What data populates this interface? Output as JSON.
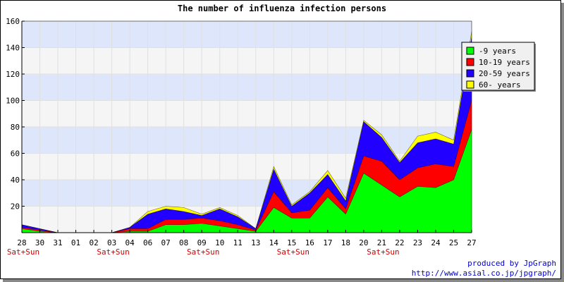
{
  "chart_data": {
    "type": "area",
    "stacked": true,
    "title": "The number of influenza infection persons",
    "xlabel": "",
    "ylabel": "",
    "categories": [
      "28",
      "30",
      "31",
      "01",
      "02",
      "03",
      "04",
      "06",
      "07",
      "08",
      "09",
      "10",
      "11",
      "13",
      "14",
      "15",
      "16",
      "17",
      "18",
      "20",
      "21",
      "22",
      "23",
      "24",
      "25",
      "27"
    ],
    "weekend_markers": [
      {
        "index": 0,
        "label": "Sat+Sun"
      },
      {
        "index": 5,
        "label": "Sat+Sun"
      },
      {
        "index": 10,
        "label": "Sat+Sun"
      },
      {
        "index": 15,
        "label": "Sat+Sun"
      },
      {
        "index": 20,
        "label": "Sat+Sun"
      }
    ],
    "ylim": [
      0,
      160
    ],
    "yticks": [
      20,
      40,
      60,
      80,
      100,
      120,
      140,
      160
    ],
    "grid": true,
    "legend_position": "top-right",
    "series": [
      {
        "name": "-9 years",
        "color": "#00ff00",
        "values": [
          3,
          1,
          0,
          0,
          0,
          0,
          1,
          1,
          6,
          6,
          7,
          5,
          3,
          1,
          19,
          11,
          11,
          27,
          14,
          45,
          36,
          27,
          35,
          34,
          40,
          78
        ]
      },
      {
        "name": "10-19 years",
        "color": "#ff0000",
        "values": [
          1,
          1,
          0,
          0,
          0,
          0,
          2,
          2,
          4,
          4,
          4,
          4,
          3,
          1,
          12,
          4,
          6,
          7,
          4,
          13,
          18,
          13,
          14,
          18,
          10,
          22
        ]
      },
      {
        "name": "20-59 years",
        "color": "#2200ff",
        "values": [
          2,
          1,
          0,
          0,
          0,
          0,
          1,
          11,
          8,
          6,
          2,
          9,
          6,
          1,
          17,
          5,
          13,
          10,
          6,
          26,
          18,
          13,
          19,
          19,
          17,
          48
        ]
      },
      {
        "name": "60- years",
        "color": "#ffff00",
        "values": [
          0,
          0,
          0,
          0,
          0,
          0,
          0,
          2,
          2,
          3,
          1,
          1,
          1,
          0,
          2,
          1,
          1,
          3,
          2,
          1,
          2,
          1,
          5,
          5,
          3,
          4
        ]
      }
    ]
  },
  "credits": {
    "line1": "produced by JpGraph",
    "line2": "http://www.asial.co.jp/jpgraph/"
  }
}
